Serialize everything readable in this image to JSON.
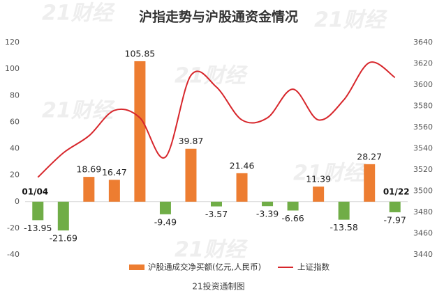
{
  "chart_data": {
    "type": "bar",
    "title": "沪指走势与沪股通资金情况",
    "source": "21投资通制图",
    "watermark": "21财经",
    "categories": [
      "01/04",
      null,
      null,
      null,
      null,
      null,
      null,
      null,
      null,
      null,
      null,
      null,
      null,
      null,
      "01/22"
    ],
    "series": [
      {
        "name": "沪股通成交净买额(亿元,人民币)",
        "type": "bar",
        "color": "#ed7d31",
        "negative_color": "#70ad47",
        "values": [
          -13.95,
          -21.69,
          18.69,
          16.47,
          105.85,
          -9.49,
          39.87,
          -3.57,
          21.46,
          -3.39,
          -6.66,
          11.39,
          -13.58,
          28.27,
          -7.97
        ]
      },
      {
        "name": "上证指数",
        "type": "line",
        "color": "#d7262b",
        "axis": "y2",
        "values": [
          3513,
          3536,
          3552,
          3576,
          3569,
          3532,
          3609,
          3598,
          3567,
          3569,
          3596,
          3567,
          3586,
          3621,
          3607
        ]
      }
    ],
    "ylim": [
      -40,
      120
    ],
    "yticks": [
      -40,
      -20,
      0,
      20,
      40,
      60,
      80,
      100,
      120
    ],
    "y2lim": [
      3440,
      3640
    ],
    "y2ticks": [
      3440,
      3460,
      3480,
      3500,
      3520,
      3540,
      3560,
      3580,
      3600,
      3620,
      3640
    ],
    "grid": false,
    "legend": "bottom"
  }
}
